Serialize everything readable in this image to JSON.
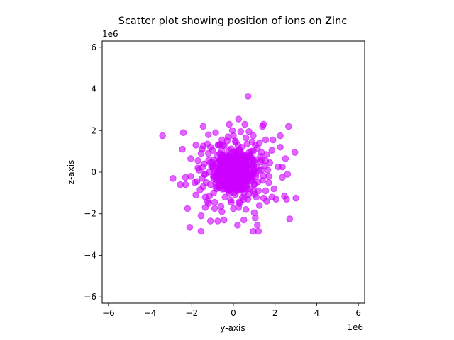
{
  "chart_data": {
    "type": "scatter",
    "title": "Scatter plot showing position of ions on Zinc",
    "xlabel": "y-axis",
    "ylabel": "z-axis",
    "xlim": [
      -6.3,
      6.3
    ],
    "ylim": [
      -6.3,
      6.3
    ],
    "x_ticks": [
      -6,
      -4,
      -2,
      0,
      2,
      4,
      6
    ],
    "y_ticks": [
      -6,
      -4,
      -2,
      0,
      2,
      4,
      6
    ],
    "x_tick_labels": [
      "−6",
      "−4",
      "−2",
      "0",
      "2",
      "4",
      "6"
    ],
    "y_tick_labels": [
      "−6",
      "−4",
      "−2",
      "0",
      "2",
      "4",
      "6"
    ],
    "x_offset_text": "1e6",
    "y_offset_text": "1e6",
    "marker_color": "#cc00ff",
    "marker_alpha": 0.6,
    "grid": false,
    "units_note": "",
    "series": [
      {
        "points": [
          [
            0.7,
            3.65
          ],
          [
            0.25,
            2.55
          ],
          [
            -0.2,
            2.3
          ],
          [
            0.55,
            2.3
          ],
          [
            1.45,
            2.3
          ],
          [
            1.4,
            2.2
          ],
          [
            2.65,
            2.2
          ],
          [
            -1.45,
            2.2
          ],
          [
            -0.05,
            2.0
          ],
          [
            0.35,
            1.95
          ],
          [
            0.75,
            1.95
          ],
          [
            -0.85,
            1.9
          ],
          [
            -2.4,
            1.9
          ],
          [
            -3.4,
            1.75
          ],
          [
            2.25,
            1.75
          ],
          [
            -1.2,
            1.8
          ],
          [
            0.95,
            1.75
          ],
          [
            -0.55,
            1.55
          ],
          [
            1.55,
            1.55
          ],
          [
            1.9,
            1.55
          ],
          [
            -1.8,
            1.3
          ],
          [
            -1.25,
            1.35
          ],
          [
            2.25,
            1.2
          ],
          [
            1.05,
            1.3
          ],
          [
            -2.45,
            1.1
          ],
          [
            -1.5,
            1.1
          ],
          [
            1.85,
            1.05
          ],
          [
            2.95,
            0.95
          ],
          [
            1.35,
            0.95
          ],
          [
            -2.05,
            0.65
          ],
          [
            2.5,
            0.65
          ],
          [
            -1.7,
            0.55
          ],
          [
            1.55,
            0.55
          ],
          [
            2.35,
            0.25
          ],
          [
            2.15,
            0.25
          ],
          [
            -1.65,
            0.1
          ],
          [
            1.65,
            0.1
          ],
          [
            -2.05,
            -0.2
          ],
          [
            -2.3,
            -0.25
          ],
          [
            -2.9,
            -0.3
          ],
          [
            2.6,
            -0.1
          ],
          [
            2.35,
            -0.25
          ],
          [
            -1.85,
            -0.5
          ],
          [
            1.7,
            -0.5
          ],
          [
            -2.55,
            -0.6
          ],
          [
            -2.3,
            -0.6
          ],
          [
            -1.45,
            -0.7
          ],
          [
            1.95,
            -0.8
          ],
          [
            -1.8,
            -1.1
          ],
          [
            -1.35,
            -1.2
          ],
          [
            1.85,
            -1.2
          ],
          [
            2.05,
            -1.3
          ],
          [
            2.45,
            -1.15
          ],
          [
            2.55,
            -1.3
          ],
          [
            3.0,
            -1.25
          ],
          [
            1.6,
            -1.4
          ],
          [
            -1.2,
            -1.5
          ],
          [
            -1.35,
            -1.7
          ],
          [
            -0.9,
            -1.75
          ],
          [
            -0.55,
            -1.9
          ],
          [
            0.6,
            -1.8
          ],
          [
            1.25,
            -1.6
          ],
          [
            -2.2,
            -1.75
          ],
          [
            1.0,
            -1.95
          ],
          [
            -1.55,
            -2.1
          ],
          [
            0.5,
            -2.3
          ],
          [
            -0.45,
            -2.3
          ],
          [
            1.05,
            -2.2
          ],
          [
            2.7,
            -2.25
          ],
          [
            -1.1,
            -2.35
          ],
          [
            -0.75,
            -2.35
          ],
          [
            0.2,
            -2.55
          ],
          [
            1.15,
            -2.55
          ],
          [
            -2.1,
            -2.65
          ],
          [
            0.95,
            -2.85
          ],
          [
            1.2,
            -2.85
          ],
          [
            -1.55,
            -2.85
          ],
          [
            0.0,
            0.0
          ],
          [
            0.3,
            0.2
          ],
          [
            -0.3,
            -0.2
          ],
          [
            0.6,
            0.5
          ],
          [
            -0.6,
            -0.4
          ],
          [
            0.9,
            -0.3
          ],
          [
            -0.9,
            0.3
          ],
          [
            0.2,
            -0.8
          ],
          [
            -0.2,
            0.8
          ],
          [
            1.1,
            0.6
          ],
          [
            -1.1,
            -0.6
          ],
          [
            0.4,
            1.2
          ],
          [
            -0.4,
            -1.2
          ],
          [
            1.2,
            -0.9
          ],
          [
            -1.2,
            0.9
          ],
          [
            0.7,
            -1.3
          ],
          [
            -0.7,
            1.3
          ],
          [
            1.35,
            0.1
          ],
          [
            -1.35,
            -0.1
          ],
          [
            0.1,
            1.45
          ],
          [
            -0.1,
            -1.45
          ],
          [
            0.95,
            1.0
          ],
          [
            -0.95,
            -1.0
          ],
          [
            1.0,
            -1.05
          ],
          [
            -1.0,
            1.05
          ],
          [
            0.5,
            0.0
          ],
          [
            -0.5,
            0.0
          ],
          [
            0.0,
            0.5
          ],
          [
            0.0,
            -0.5
          ],
          [
            0.8,
            0.8
          ],
          [
            -0.8,
            -0.8
          ],
          [
            0.8,
            -0.8
          ],
          [
            -0.8,
            0.8
          ],
          [
            1.3,
            0.5
          ],
          [
            -1.3,
            -0.5
          ],
          [
            0.5,
            -1.3
          ],
          [
            -0.5,
            1.3
          ],
          [
            1.4,
            -0.4
          ],
          [
            -1.4,
            0.4
          ],
          [
            0.3,
            -1.5
          ],
          [
            -0.3,
            1.5
          ],
          [
            1.5,
            0.3
          ],
          [
            -1.5,
            -0.3
          ],
          [
            1.15,
            1.15
          ],
          [
            -1.15,
            -1.15
          ],
          [
            1.1,
            -1.2
          ],
          [
            -1.1,
            1.2
          ],
          [
            0.15,
            0.65
          ],
          [
            -0.15,
            -0.65
          ],
          [
            0.65,
            -0.15
          ],
          [
            -0.65,
            0.15
          ],
          [
            1.55,
            -0.9
          ],
          [
            -1.55,
            0.9
          ],
          [
            0.9,
            1.45
          ],
          [
            -0.9,
            -1.45
          ],
          [
            1.6,
            0.85
          ],
          [
            -1.6,
            -0.85
          ],
          [
            0.25,
            -1.7
          ],
          [
            -0.25,
            1.7
          ],
          [
            1.7,
            -0.2
          ],
          [
            -1.7,
            0.2
          ],
          [
            0.6,
            1.65
          ],
          [
            -0.6,
            -1.65
          ],
          [
            1.45,
            -1.25
          ],
          [
            -1.45,
            1.25
          ],
          [
            1.25,
            1.4
          ],
          [
            -1.25,
            -1.4
          ],
          [
            1.75,
            0.45
          ],
          [
            -1.75,
            -0.45
          ],
          [
            0.0,
            1.75
          ],
          [
            0.0,
            -1.75
          ]
        ]
      }
    ]
  }
}
